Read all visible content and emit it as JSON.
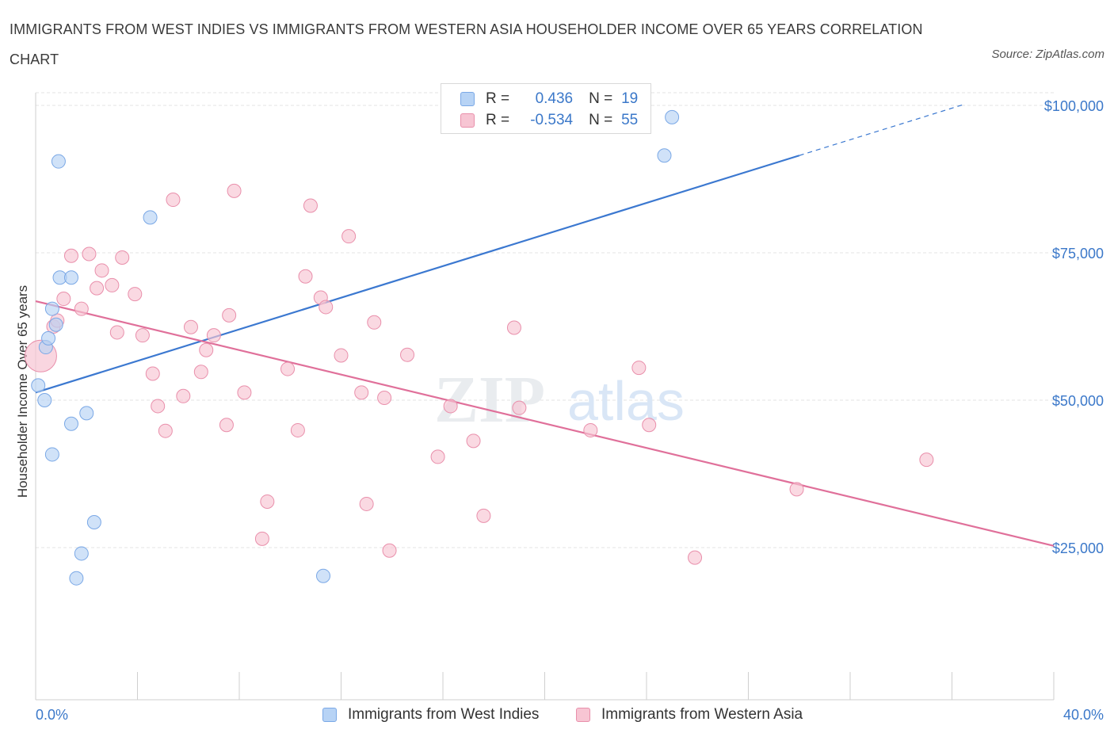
{
  "title": "IMMIGRANTS FROM WEST INDIES VS IMMIGRANTS FROM WESTERN ASIA HOUSEHOLDER INCOME OVER 65 YEARS CORRELATION CHART",
  "source": "Source: ZipAtlas.com",
  "watermark": {
    "zip": "ZIP",
    "atlas": "atlas"
  },
  "legend": {
    "r_label": "R =",
    "n_label": "N =",
    "rows": [
      {
        "r": "0.436",
        "n": "19",
        "fill": "#b7d3f5",
        "stroke": "#7aa8e6"
      },
      {
        "r": "-0.534",
        "n": "55",
        "fill": "#f7c5d3",
        "stroke": "#e98fab"
      }
    ]
  },
  "bottom_legend": [
    {
      "label": "Immigrants from West Indies",
      "fill": "#b7d3f5",
      "stroke": "#7aa8e6"
    },
    {
      "label": "Immigrants from Western Asia",
      "fill": "#f7c5d3",
      "stroke": "#e98fab"
    }
  ],
  "chart_data": {
    "type": "scatter",
    "title": "IMMIGRANTS FROM WEST INDIES VS IMMIGRANTS FROM WESTERN ASIA HOUSEHOLDER INCOME OVER 65 YEARS CORRELATION CHART",
    "xlabel": "",
    "ylabel": "Householder Income Over 65 years",
    "xlim": [
      0,
      40
    ],
    "ylim": [
      2500,
      105000
    ],
    "x_tick_labels": [
      {
        "value": 0,
        "label": "0.0%"
      },
      {
        "value": 40,
        "label": "40.0%"
      }
    ],
    "y_ticks": [
      {
        "value": 25000,
        "label": "$25,000"
      },
      {
        "value": 50000,
        "label": "$50,000"
      },
      {
        "value": 75000,
        "label": "$75,000"
      },
      {
        "value": 100000,
        "label": "$100,000"
      }
    ],
    "grid": true,
    "legend_position": "top-center",
    "series": [
      {
        "name": "Immigrants from West Indies",
        "color": "#3b78d0",
        "fill": "#b7d3f5",
        "points": [
          [
            0.1,
            52500
          ],
          [
            0.35,
            50000
          ],
          [
            0.4,
            59000
          ],
          [
            0.5,
            60500
          ],
          [
            0.65,
            65500
          ],
          [
            0.8,
            62800
          ],
          [
            0.65,
            40800
          ],
          [
            0.9,
            90500
          ],
          [
            0.95,
            70800
          ],
          [
            1.4,
            70800
          ],
          [
            1.4,
            46000
          ],
          [
            2.0,
            47800
          ],
          [
            2.3,
            29300
          ],
          [
            1.8,
            24000
          ],
          [
            1.6,
            19800
          ],
          [
            4.5,
            81000
          ],
          [
            11.3,
            20200
          ],
          [
            24.7,
            91500
          ],
          [
            25.0,
            98000
          ]
        ],
        "trend": {
          "x": [
            0,
            30.0
          ],
          "y": [
            51300,
            91500
          ],
          "dashed_to": {
            "x": 36.5,
            "y": 100200
          }
        }
      },
      {
        "name": "Immigrants from Western Asia",
        "color": "#e0709a",
        "fill": "#f7c5d3",
        "points": [
          [
            0.2,
            57500
          ],
          [
            0.7,
            62500
          ],
          [
            0.85,
            63500
          ],
          [
            1.1,
            67200
          ],
          [
            1.4,
            74500
          ],
          [
            2.1,
            74800
          ],
          [
            1.8,
            65500
          ],
          [
            2.4,
            69000
          ],
          [
            2.6,
            72000
          ],
          [
            3.0,
            69500
          ],
          [
            3.4,
            74200
          ],
          [
            3.2,
            61500
          ],
          [
            3.9,
            68000
          ],
          [
            4.2,
            61000
          ],
          [
            4.6,
            54500
          ],
          [
            4.8,
            49000
          ],
          [
            5.1,
            44800
          ],
          [
            5.4,
            84000
          ],
          [
            5.8,
            50700
          ],
          [
            6.1,
            62400
          ],
          [
            6.5,
            54800
          ],
          [
            6.7,
            58500
          ],
          [
            7.0,
            61000
          ],
          [
            7.5,
            45800
          ],
          [
            7.6,
            64400
          ],
          [
            7.8,
            85500
          ],
          [
            8.2,
            51300
          ],
          [
            8.9,
            26500
          ],
          [
            9.1,
            32800
          ],
          [
            9.9,
            55300
          ],
          [
            10.3,
            44900
          ],
          [
            10.6,
            71000
          ],
          [
            10.8,
            83000
          ],
          [
            11.2,
            67400
          ],
          [
            11.4,
            65800
          ],
          [
            12.0,
            57600
          ],
          [
            12.3,
            77800
          ],
          [
            12.8,
            51300
          ],
          [
            13.0,
            32400
          ],
          [
            13.3,
            63200
          ],
          [
            13.7,
            50400
          ],
          [
            13.9,
            24500
          ],
          [
            14.6,
            57700
          ],
          [
            15.8,
            40400
          ],
          [
            16.3,
            49000
          ],
          [
            17.2,
            43100
          ],
          [
            17.6,
            30400
          ],
          [
            18.8,
            62300
          ],
          [
            19.0,
            48700
          ],
          [
            21.8,
            44900
          ],
          [
            23.7,
            55500
          ],
          [
            24.1,
            45800
          ],
          [
            25.9,
            23300
          ],
          [
            29.9,
            34900
          ],
          [
            35.0,
            39900
          ]
        ],
        "trend": {
          "x": [
            0,
            40.0
          ],
          "y": [
            66800,
            25300
          ]
        }
      }
    ]
  }
}
